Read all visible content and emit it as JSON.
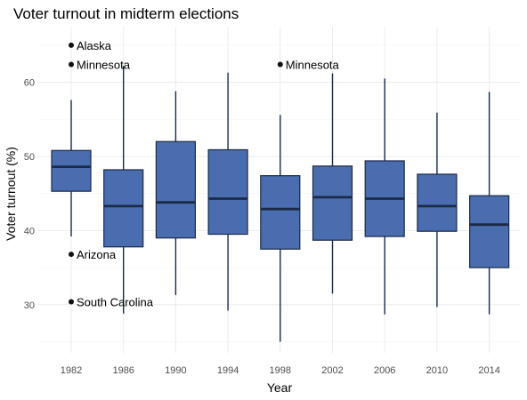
{
  "chart_data": {
    "type": "boxplot",
    "title": "Voter turnout in midterm elections",
    "xlabel": "Year",
    "ylabel": "Voter turnout (%)",
    "ylim": [
      23.5,
      67.5
    ],
    "yticks": [
      30,
      40,
      50,
      60
    ],
    "grid": true,
    "categories": [
      "1982",
      "1986",
      "1990",
      "1994",
      "1998",
      "2002",
      "2006",
      "2010",
      "2014"
    ],
    "boxes": [
      {
        "label": "1982",
        "whisker_low": 39.2,
        "q1": 45.3,
        "median": 48.6,
        "q3": 50.8,
        "whisker_high": 57.6
      },
      {
        "label": "1986",
        "whisker_low": 28.8,
        "q1": 37.8,
        "median": 43.3,
        "q3": 48.2,
        "whisker_high": 62.2
      },
      {
        "label": "1990",
        "whisker_low": 31.3,
        "q1": 39.0,
        "median": 43.8,
        "q3": 52.0,
        "whisker_high": 58.8
      },
      {
        "label": "1994",
        "whisker_low": 29.2,
        "q1": 39.5,
        "median": 44.3,
        "q3": 50.9,
        "whisker_high": 61.3
      },
      {
        "label": "1998",
        "whisker_low": 25.0,
        "q1": 37.5,
        "median": 42.9,
        "q3": 47.4,
        "whisker_high": 55.6
      },
      {
        "label": "2002",
        "whisker_low": 31.5,
        "q1": 38.7,
        "median": 44.5,
        "q3": 48.7,
        "whisker_high": 61.2
      },
      {
        "label": "2006",
        "whisker_low": 28.7,
        "q1": 39.2,
        "median": 44.3,
        "q3": 49.4,
        "whisker_high": 60.5
      },
      {
        "label": "2010",
        "whisker_low": 29.7,
        "q1": 39.9,
        "median": 43.3,
        "q3": 47.6,
        "whisker_high": 55.9
      },
      {
        "label": "2014",
        "whisker_low": 28.7,
        "q1": 35.0,
        "median": 40.8,
        "q3": 44.7,
        "whisker_high": 58.7
      }
    ],
    "outliers": [
      {
        "year": "1982",
        "value": 65.0,
        "label": "Alaska"
      },
      {
        "year": "1982",
        "value": 62.4,
        "label": "Minnesota"
      },
      {
        "year": "1982",
        "value": 36.8,
        "label": "Arizona"
      },
      {
        "year": "1982",
        "value": 30.4,
        "label": "South Carolina"
      },
      {
        "year": "1998",
        "value": 62.4,
        "label": "Minnesota"
      }
    ],
    "colors": {
      "box_fill": "#4a6daf",
      "box_stroke": "#1a2a48",
      "median": "#1a2a48",
      "whisker": "#1a2a48",
      "point": "#111111",
      "grid_major": "#ebebeb",
      "grid_minor": "#f4f4f4"
    }
  }
}
